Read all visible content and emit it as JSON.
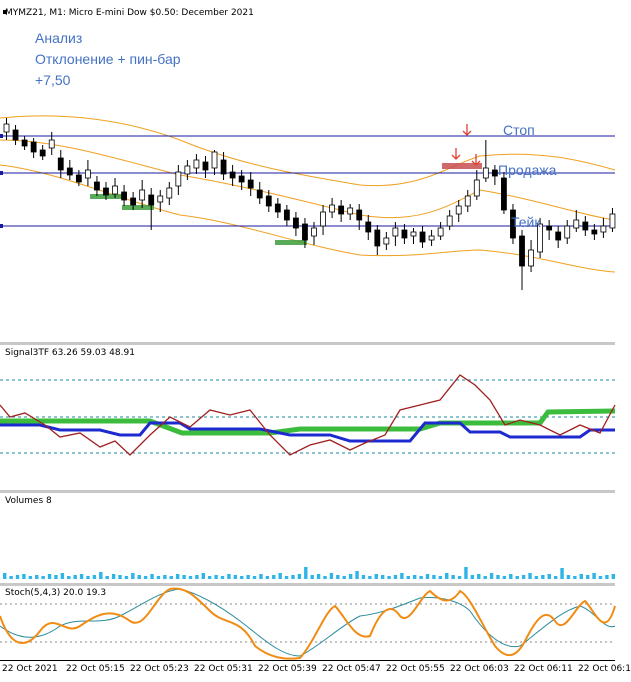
{
  "window": {
    "symbol_line": "MYMZ21, M1:  Micro E-mini Dow $0.50: December 2021"
  },
  "annotations": [
    "Анализ",
    "Отклонение + пин-бар",
    "+7,50"
  ],
  "levels": {
    "stop": "Стоп",
    "sell": "Продажа",
    "take": "Тейк"
  },
  "indicators": {
    "signal3tf": "Signal3TF 63.26 59.03 48.91",
    "volumes": "Volumes 8",
    "stoch": "Stoch(5,4,3) 20.0 19.3"
  },
  "time_axis": [
    "22 Oct 2021",
    "22 Oct 05:15",
    "22 Oct 05:23",
    "22 Oct 05:31",
    "22 Oct 05:39",
    "22 Oct 05:47",
    "22 Oct 05:55",
    "22 Oct 06:03",
    "22 Oct 06:11",
    "22 Oct 06:1"
  ],
  "colors": {
    "bands": "#f0a020",
    "levels": "#1a1aa0",
    "signal_green": "#3cbc3c",
    "signal_blue": "#1c2ad0",
    "signal_red": "#a02020",
    "stoch_main": "#f08c14",
    "stoch_signal": "#2a8c9c",
    "volume": "#2eb4e6"
  }
}
